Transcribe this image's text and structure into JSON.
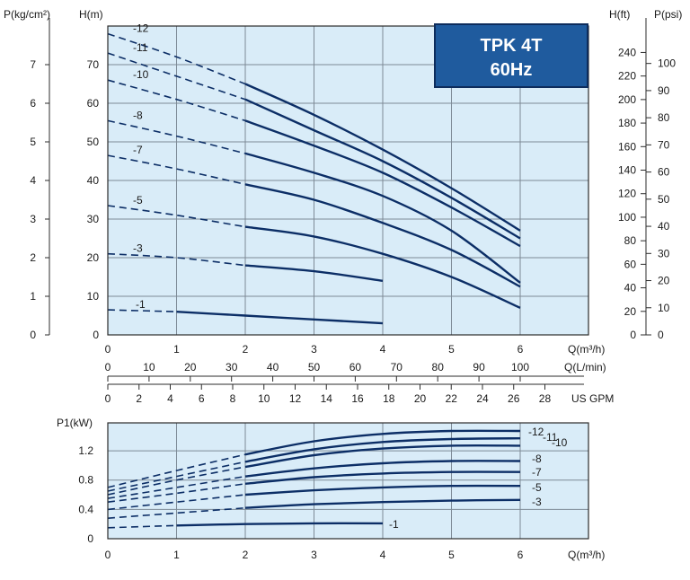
{
  "chart_data": [
    {
      "type": "line",
      "badge": {
        "line1": "TPK 4T",
        "line2": "60Hz",
        "colors": {
          "fill": "#1f5b9e",
          "border": "#0d2c5c",
          "text": "#ffffff"
        }
      },
      "colors": {
        "curve": "#0c2e66",
        "plot_bg": "#d9ecf8",
        "grid": "#7d8a96"
      },
      "xlabel": "Q(m³/h)",
      "xlim": [
        0,
        6
      ],
      "x_ticks": [
        "0",
        "1",
        "2",
        "3",
        "4",
        "5",
        "6"
      ],
      "secondary_x_axes": [
        {
          "label": "Q(L/min)",
          "ticks": [
            "0",
            "10",
            "20",
            "30",
            "40",
            "50",
            "60",
            "70",
            "80",
            "90",
            "100"
          ]
        },
        {
          "label": "US GPM",
          "ticks": [
            "0",
            "2",
            "4",
            "6",
            "8",
            "10",
            "12",
            "14",
            "16",
            "18",
            "20",
            "22",
            "24",
            "26",
            "28"
          ]
        }
      ],
      "ylabel": "H(m)",
      "ylim": [
        0,
        80
      ],
      "y_ticks": [
        "0",
        "10",
        "20",
        "30",
        "40",
        "50",
        "60",
        "70"
      ],
      "left_axis": {
        "label": "P(kg/cm²)",
        "ticks": [
          "0",
          "1",
          "2",
          "3",
          "4",
          "5",
          "6",
          "7"
        ]
      },
      "right_axes": [
        {
          "label": "H(ft)",
          "ticks": [
            "0",
            "20",
            "40",
            "60",
            "80",
            "100",
            "120",
            "140",
            "160",
            "180",
            "200",
            "220",
            "240"
          ]
        },
        {
          "label": "P(psi)",
          "ticks": [
            "0",
            "10",
            "20",
            "30",
            "40",
            "50",
            "60",
            "70",
            "80",
            "90",
            "100"
          ]
        }
      ],
      "grid": true,
      "series": [
        {
          "name": "-12",
          "dashed": {
            "x": [
              0,
              1,
              2
            ],
            "y": [
              78,
              72,
              65
            ]
          },
          "solid": {
            "x": [
              2,
              3,
              4,
              5,
              6
            ],
            "y": [
              65,
              57,
              48,
              38,
              27
            ]
          }
        },
        {
          "name": "-11",
          "dashed": {
            "x": [
              0,
              1,
              2
            ],
            "y": [
              73,
              67,
              61
            ]
          },
          "solid": {
            "x": [
              2,
              3,
              4,
              5,
              6
            ],
            "y": [
              61,
              53,
              45,
              35.5,
              25
            ]
          }
        },
        {
          "name": "-10",
          "dashed": {
            "x": [
              0,
              1,
              2
            ],
            "y": [
              66,
              61,
              55.5
            ]
          },
          "solid": {
            "x": [
              2,
              3,
              4,
              5,
              6
            ],
            "y": [
              55.5,
              49,
              42,
              33,
              23
            ]
          }
        },
        {
          "name": "-8",
          "dashed": {
            "x": [
              0,
              1,
              2
            ],
            "y": [
              55.5,
              51.5,
              47
            ]
          },
          "solid": {
            "x": [
              2,
              3,
              4,
              5,
              6
            ],
            "y": [
              47,
              42,
              36,
              27,
              13.5
            ]
          }
        },
        {
          "name": "-7",
          "dashed": {
            "x": [
              0,
              1,
              2
            ],
            "y": [
              46.5,
              43,
              39
            ]
          },
          "solid": {
            "x": [
              2,
              3,
              4,
              5,
              6
            ],
            "y": [
              39,
              35,
              29,
              22,
              12.5
            ]
          }
        },
        {
          "name": "-5",
          "dashed": {
            "x": [
              0,
              1,
              2
            ],
            "y": [
              33.5,
              31,
              28
            ]
          },
          "solid": {
            "x": [
              2,
              3,
              4,
              5,
              6
            ],
            "y": [
              28,
              25.5,
              21,
              15,
              7
            ]
          }
        },
        {
          "name": "-3",
          "dashed": {
            "x": [
              0,
              1,
              2
            ],
            "y": [
              21,
              20,
              18
            ]
          },
          "solid": {
            "x": [
              2,
              3,
              4
            ],
            "y": [
              18,
              16.5,
              14
            ]
          }
        },
        {
          "name": "-1",
          "dashed": {
            "x": [
              0,
              1
            ],
            "y": [
              6.5,
              6
            ]
          },
          "solid": {
            "x": [
              1,
              2,
              3,
              4
            ],
            "y": [
              6,
              5,
              4,
              3
            ]
          }
        }
      ]
    },
    {
      "type": "line",
      "colors": {
        "curve": "#0c2e66",
        "plot_bg": "#d9ecf8",
        "grid": "#7d8a96"
      },
      "xlabel": "Q(m³/h)",
      "xlim": [
        0,
        6
      ],
      "x_ticks": [
        "0",
        "1",
        "2",
        "3",
        "4",
        "5",
        "6"
      ],
      "ylabel": "P1(kW)",
      "ylim": [
        0,
        1.5
      ],
      "y_ticks": [
        "0",
        "0.4",
        "0.8",
        "1.2"
      ],
      "grid": true,
      "series": [
        {
          "name": "-12",
          "dashed": {
            "x": [
              0,
              1,
              2
            ],
            "y": [
              0.7,
              0.93,
              1.15
            ]
          },
          "solid": {
            "x": [
              2,
              3,
              4,
              5,
              6
            ],
            "y": [
              1.15,
              1.33,
              1.43,
              1.47,
              1.47
            ]
          }
        },
        {
          "name": "-11",
          "dashed": {
            "x": [
              0,
              1,
              2
            ],
            "y": [
              0.65,
              0.85,
              1.05
            ]
          },
          "solid": {
            "x": [
              2,
              3,
              4,
              5,
              6
            ],
            "y": [
              1.05,
              1.22,
              1.32,
              1.36,
              1.37
            ]
          }
        },
        {
          "name": "-10",
          "dashed": {
            "x": [
              0,
              1,
              2
            ],
            "y": [
              0.6,
              0.8,
              0.98
            ]
          },
          "solid": {
            "x": [
              2,
              3,
              4,
              5,
              6
            ],
            "y": [
              0.98,
              1.14,
              1.23,
              1.27,
              1.27
            ]
          }
        },
        {
          "name": "-8",
          "dashed": {
            "x": [
              0,
              1,
              2
            ],
            "y": [
              0.55,
              0.7,
              0.85
            ]
          },
          "solid": {
            "x": [
              2,
              3,
              4,
              5,
              6
            ],
            "y": [
              0.85,
              0.96,
              1.03,
              1.06,
              1.06
            ]
          }
        },
        {
          "name": "-7",
          "dashed": {
            "x": [
              0,
              1,
              2
            ],
            "y": [
              0.5,
              0.62,
              0.75
            ]
          },
          "solid": {
            "x": [
              2,
              3,
              4,
              5,
              6
            ],
            "y": [
              0.75,
              0.84,
              0.89,
              0.91,
              0.91
            ]
          }
        },
        {
          "name": "-5",
          "dashed": {
            "x": [
              0,
              1,
              2
            ],
            "y": [
              0.4,
              0.5,
              0.6
            ]
          },
          "solid": {
            "x": [
              2,
              3,
              4,
              5,
              6
            ],
            "y": [
              0.6,
              0.66,
              0.7,
              0.72,
              0.72
            ]
          }
        },
        {
          "name": "-3",
          "dashed": {
            "x": [
              0,
              1,
              2
            ],
            "y": [
              0.28,
              0.35,
              0.42
            ]
          },
          "solid": {
            "x": [
              2,
              3,
              4,
              5,
              6
            ],
            "y": [
              0.42,
              0.47,
              0.5,
              0.52,
              0.53
            ]
          }
        },
        {
          "name": "-1",
          "dashed": {
            "x": [
              0,
              1
            ],
            "y": [
              0.15,
              0.18
            ]
          },
          "solid": {
            "x": [
              1,
              2,
              3,
              4
            ],
            "y": [
              0.18,
              0.2,
              0.21,
              0.21
            ]
          }
        }
      ]
    }
  ]
}
